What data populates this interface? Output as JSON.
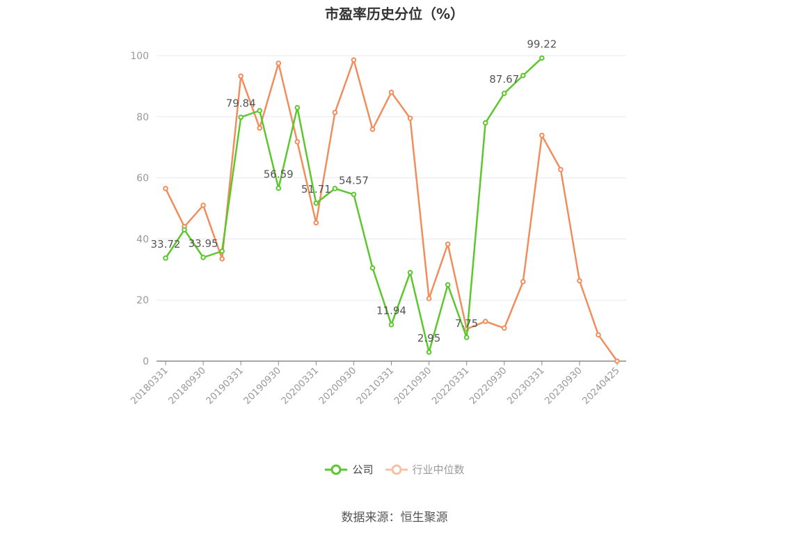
{
  "title": "市盈率历史分位（%）",
  "source": "数据来源：恒生聚源",
  "colors": {
    "company": "#5bc72b",
    "industry": "#f18d5c",
    "grid": "#e6e8f0",
    "axis": "#999999",
    "label": "#555555"
  },
  "legend": {
    "company": "公司",
    "industry": "行业中位数"
  },
  "chart_data": {
    "type": "line",
    "title": "市盈率历史分位（%）",
    "xlabel": "",
    "ylabel": "",
    "ylim": [
      0,
      100
    ],
    "yticks": [
      0,
      20,
      40,
      60,
      80,
      100
    ],
    "x": [
      "20180331",
      "20180630",
      "20180930",
      "20181231",
      "20190331",
      "20190630",
      "20190930",
      "20191231",
      "20200331",
      "20200630",
      "20200930",
      "20201231",
      "20210331",
      "20210630",
      "20210930",
      "20211231",
      "20220331",
      "20220630",
      "20220930",
      "20221231",
      "20230331",
      "20230630",
      "20230930",
      "20231231",
      "20240425"
    ],
    "xtick_labels": [
      "20180331",
      "20180930",
      "20190331",
      "20190930",
      "20200331",
      "20200930",
      "20210331",
      "20210930",
      "20220331",
      "20220930",
      "20230331",
      "20230930",
      "20240425"
    ],
    "xtick_index": [
      0,
      2,
      4,
      6,
      8,
      10,
      12,
      14,
      16,
      18,
      20,
      22,
      24
    ],
    "grid": true,
    "legend_position": "bottom",
    "series": [
      {
        "name": "公司",
        "color": "#5bc72b",
        "values": [
          33.72,
          43,
          33.95,
          36,
          79.84,
          82,
          56.59,
          83,
          51.71,
          56.5,
          54.57,
          30.5,
          11.94,
          29,
          2.95,
          25,
          7.75,
          78,
          87.67,
          93.5,
          99.22,
          null,
          null,
          null,
          null
        ],
        "labels": [
          "33.72",
          null,
          "33.95",
          null,
          "79.84",
          null,
          "56.59",
          null,
          "51.71",
          null,
          "54.57",
          null,
          "11.94",
          null,
          "2.95",
          null,
          "7.75",
          null,
          "87.67",
          null,
          "99.22",
          null,
          null,
          null,
          null
        ]
      },
      {
        "name": "行业中位数",
        "color": "#f18d5c",
        "values": [
          56.5,
          44,
          51,
          33.5,
          93.3,
          76.3,
          97.5,
          71.8,
          45.3,
          81.4,
          98.6,
          75.9,
          88,
          79.5,
          20.5,
          38.3,
          10.5,
          13,
          10.8,
          26,
          73.9,
          62.7,
          26.3,
          8.6,
          0
        ]
      }
    ]
  }
}
